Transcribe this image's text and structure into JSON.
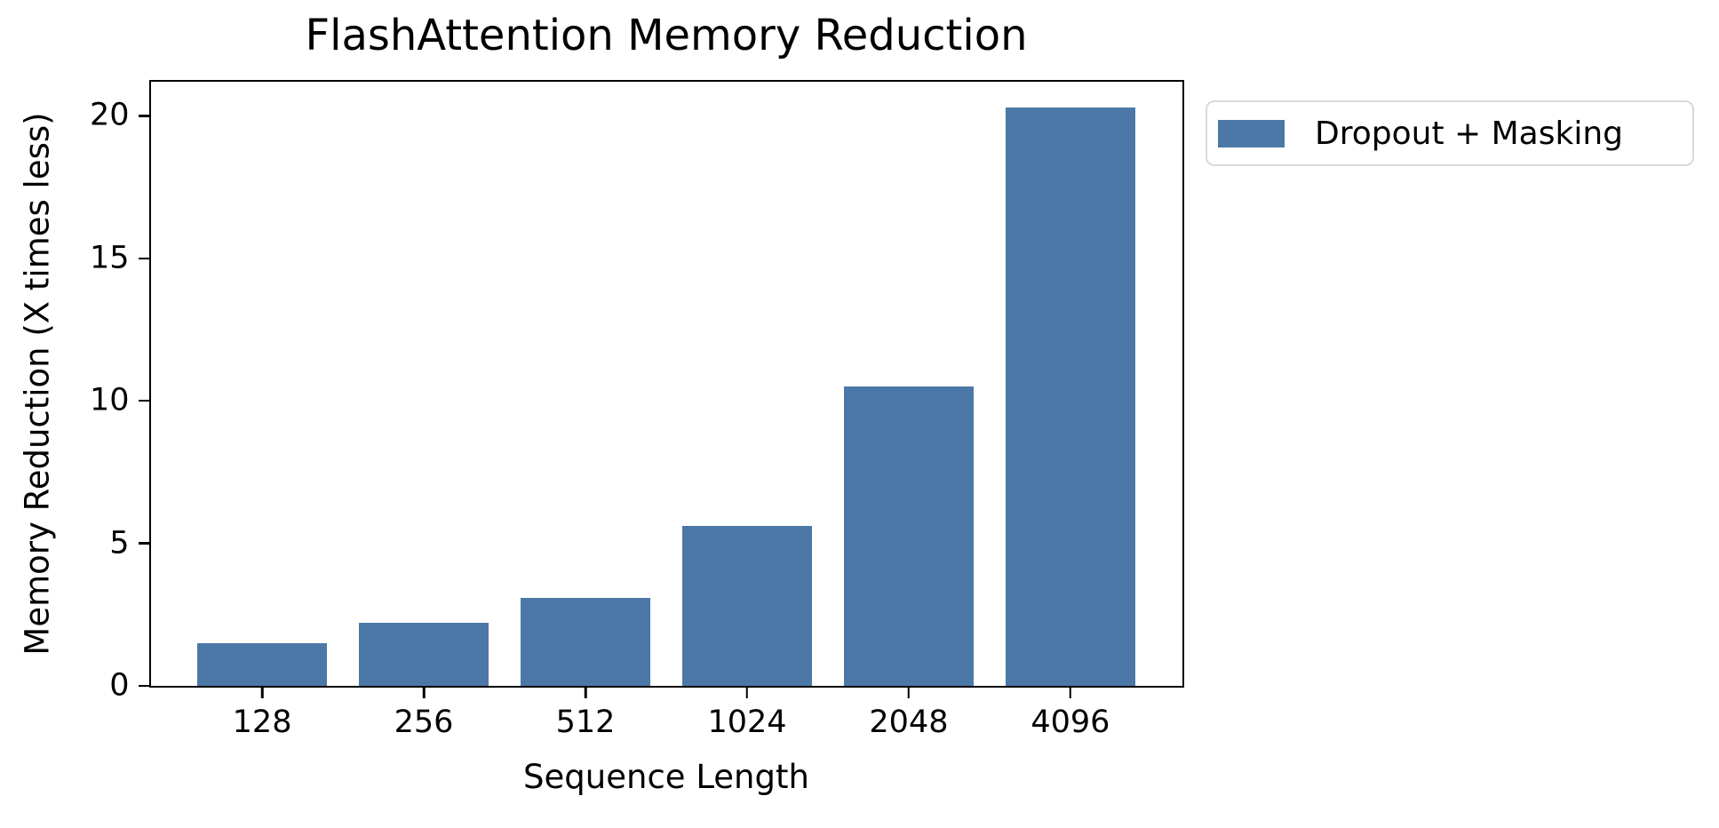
{
  "chart_data": {
    "type": "bar",
    "title": "FlashAttention Memory Reduction",
    "xlabel": "Sequence Length",
    "ylabel": "Memory Reduction (X times less)",
    "categories": [
      "128",
      "256",
      "512",
      "1024",
      "2048",
      "4096"
    ],
    "values": [
      1.5,
      2.2,
      3.1,
      5.6,
      10.5,
      20.3
    ],
    "series_name": "Dropout + Masking",
    "legend": {
      "label": "Dropout + Masking",
      "position": "outside-upper-right"
    },
    "bar_color": "#4C78A8",
    "axis_color": "#000000",
    "ylim": [
      0,
      21.2
    ],
    "yticks": [
      0,
      5,
      10,
      15,
      20
    ],
    "grid": false
  }
}
